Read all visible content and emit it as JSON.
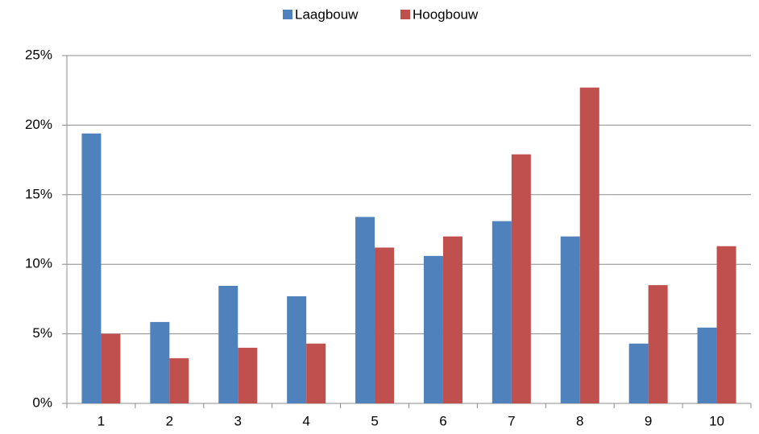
{
  "chart_data": {
    "type": "bar",
    "categories": [
      "1",
      "2",
      "3",
      "4",
      "5",
      "6",
      "7",
      "8",
      "9",
      "10"
    ],
    "series": [
      {
        "name": "Laagbouw",
        "color": "#4f81bd",
        "values": [
          19.4,
          5.85,
          8.45,
          7.7,
          13.4,
          10.6,
          13.1,
          12.0,
          4.3,
          5.45
        ]
      },
      {
        "name": "Hoogbouw",
        "color": "#c0504d",
        "values": [
          5.0,
          3.25,
          4.0,
          4.3,
          11.2,
          12.0,
          17.9,
          22.7,
          8.5,
          11.3
        ]
      }
    ],
    "ylim": [
      0,
      25
    ],
    "yticks": [
      {
        "value": 0,
        "label": "0%"
      },
      {
        "value": 5,
        "label": "5%"
      },
      {
        "value": 10,
        "label": "10%"
      },
      {
        "value": 15,
        "label": "15%"
      },
      {
        "value": 20,
        "label": "20%"
      },
      {
        "value": 25,
        "label": "25%"
      }
    ],
    "grid": true,
    "legend": "top"
  }
}
